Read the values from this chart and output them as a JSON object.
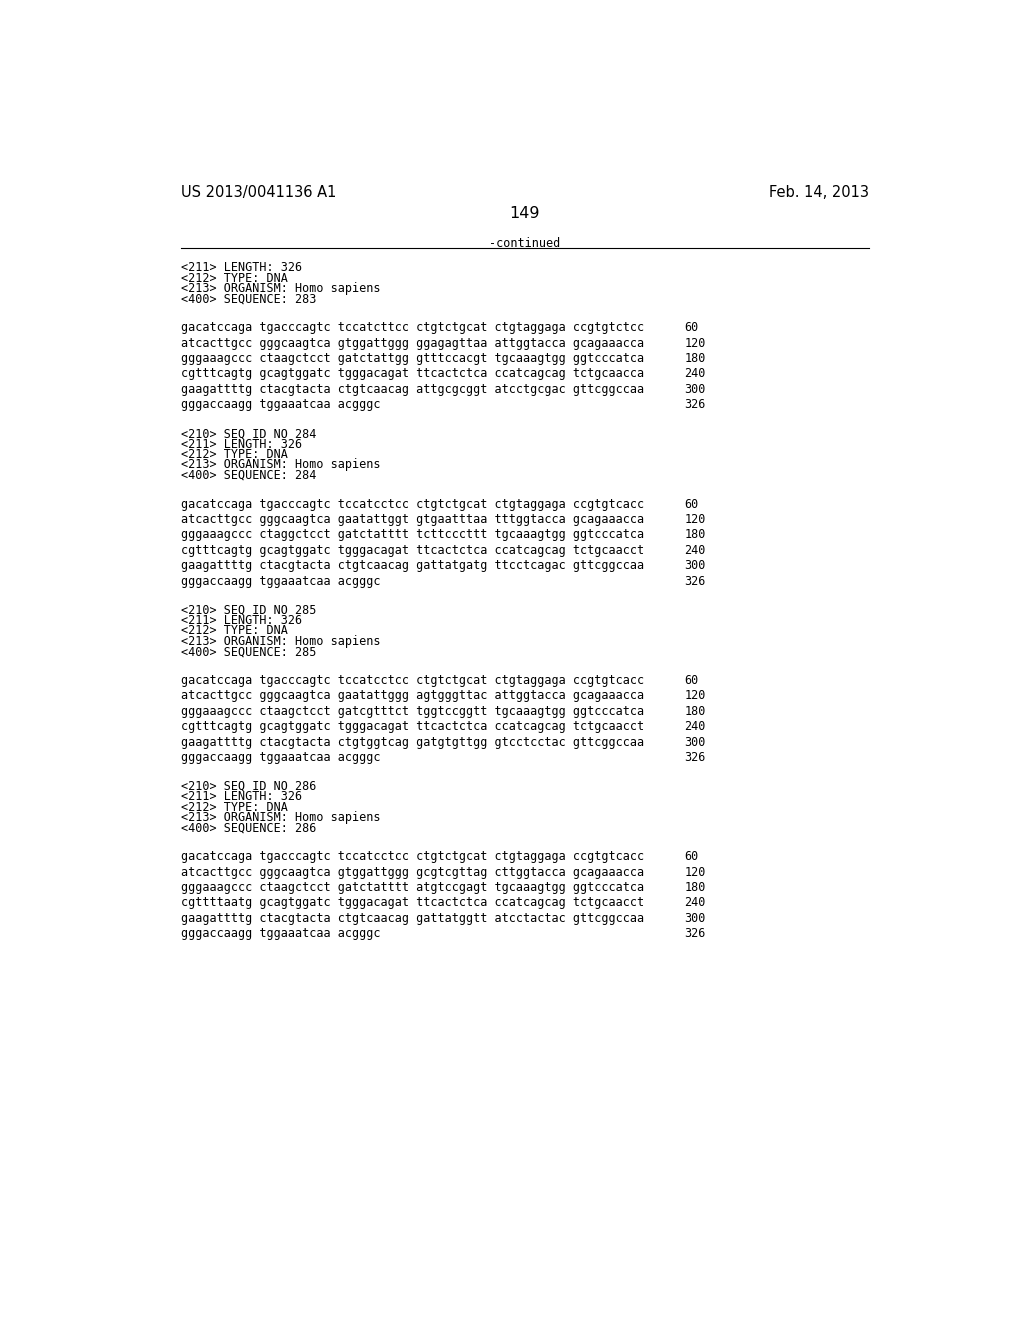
{
  "header_left": "US 2013/0041136 A1",
  "header_right": "Feb. 14, 2013",
  "page_number": "149",
  "continued_label": "-continued",
  "background_color": "#ffffff",
  "text_color": "#000000",
  "font_size_header": 10.5,
  "font_size_body": 8.5,
  "font_size_page": 11.5,
  "sections": [
    {
      "meta": [
        "<211> LENGTH: 326",
        "<212> TYPE: DNA",
        "<213> ORGANISM: Homo sapiens"
      ],
      "seq_label": "<400> SEQUENCE: 283",
      "lines": [
        [
          "gacatccaga tgacccagtc tccatcttcc ctgtctgcat ctgtaggaga ccgtgtctcc",
          "60"
        ],
        [
          "atcacttgcc gggcaagtca gtggattggg ggagagttaa attggtacca gcagaaacca",
          "120"
        ],
        [
          "gggaaagccc ctaagctcct gatctattgg gtttccacgt tgcaaagtgg ggtcccatca",
          "180"
        ],
        [
          "cgtttcagtg gcagtggatc tgggacagat ttcactctca ccatcagcag tctgcaacca",
          "240"
        ],
        [
          "gaagattttg ctacgtacta ctgtcaacag attgcgcggt atcctgcgac gttcggccaa",
          "300"
        ],
        [
          "gggaccaagg tggaaatcaa acgggc",
          "326"
        ]
      ]
    },
    {
      "meta": [
        "<210> SEQ ID NO 284",
        "<211> LENGTH: 326",
        "<212> TYPE: DNA",
        "<213> ORGANISM: Homo sapiens"
      ],
      "seq_label": "<400> SEQUENCE: 284",
      "lines": [
        [
          "gacatccaga tgacccagtc tccatcctcc ctgtctgcat ctgtaggaga ccgtgtcacc",
          "60"
        ],
        [
          "atcacttgcc gggcaagtca gaatattggt gtgaatttaa tttggtacca gcagaaacca",
          "120"
        ],
        [
          "gggaaagccc ctaggctcct gatctatttt tcttcccttt tgcaaagtgg ggtcccatca",
          "180"
        ],
        [
          "cgtttcagtg gcagtggatc tgggacagat ttcactctca ccatcagcag tctgcaacct",
          "240"
        ],
        [
          "gaagattttg ctacgtacta ctgtcaacag gattatgatg ttcctcagac gttcggccaa",
          "300"
        ],
        [
          "gggaccaagg tggaaatcaa acgggc",
          "326"
        ]
      ]
    },
    {
      "meta": [
        "<210> SEQ ID NO 285",
        "<211> LENGTH: 326",
        "<212> TYPE: DNA",
        "<213> ORGANISM: Homo sapiens"
      ],
      "seq_label": "<400> SEQUENCE: 285",
      "lines": [
        [
          "gacatccaga tgacccagtc tccatcctcc ctgtctgcat ctgtaggaga ccgtgtcacc",
          "60"
        ],
        [
          "atcacttgcc gggcaagtca gaatattggg agtgggttac attggtacca gcagaaacca",
          "120"
        ],
        [
          "gggaaagccc ctaagctcct gatcgtttct tggtccggtt tgcaaagtgg ggtcccatca",
          "180"
        ],
        [
          "cgtttcagtg gcagtggatc tgggacagat ttcactctca ccatcagcag tctgcaacct",
          "240"
        ],
        [
          "gaagattttg ctacgtacta ctgtggtcag gatgtgttgg gtcctcctac gttcggccaa",
          "300"
        ],
        [
          "gggaccaagg tggaaatcaa acgggc",
          "326"
        ]
      ]
    },
    {
      "meta": [
        "<210> SEQ ID NO 286",
        "<211> LENGTH: 326",
        "<212> TYPE: DNA",
        "<213> ORGANISM: Homo sapiens"
      ],
      "seq_label": "<400> SEQUENCE: 286",
      "lines": [
        [
          "gacatccaga tgacccagtc tccatcctcc ctgtctgcat ctgtaggaga ccgtgtcacc",
          "60"
        ],
        [
          "atcacttgcc gggcaagtca gtggattggg gcgtcgttag cttggtacca gcagaaacca",
          "120"
        ],
        [
          "gggaaagccc ctaagctcct gatctatttt atgtccgagt tgcaaagtgg ggtcccatca",
          "180"
        ],
        [
          "cgttttaatg gcagtggatc tgggacagat ttcactctca ccatcagcag tctgcaacct",
          "240"
        ],
        [
          "gaagattttg ctacgtacta ctgtcaacag gattatggtt atcctactac gttcggccaa",
          "300"
        ],
        [
          "gggaccaagg tggaaatcaa acgggc",
          "326"
        ]
      ]
    }
  ]
}
